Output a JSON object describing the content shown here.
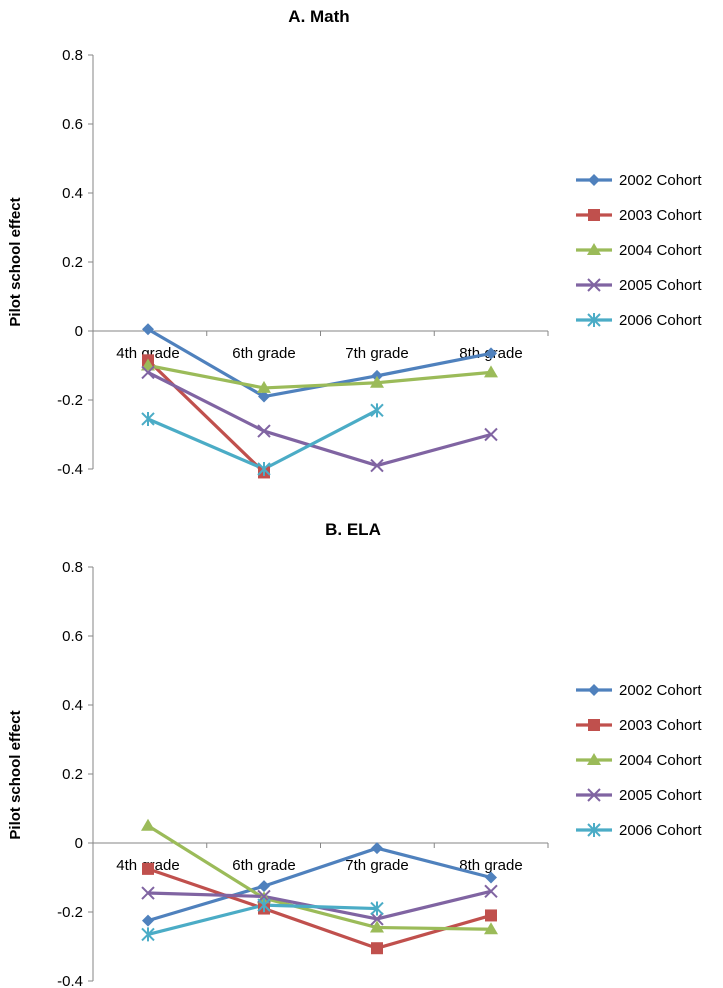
{
  "chart_data": [
    {
      "type": "line",
      "title": "A. Math",
      "ylabel": "Pilot school effect",
      "xlabel": "",
      "ylim": [
        -0.4,
        0.8
      ],
      "yticks": [
        "0.8",
        "0.6",
        "0.4",
        "0.2",
        "0",
        "-0.2",
        "-0.4"
      ],
      "categories": [
        "4th grade",
        "6th grade",
        "7th grade",
        "8th grade"
      ],
      "legend_position": "right",
      "grid": false,
      "series": [
        {
          "name": "2002 Cohort",
          "color": "#4f81bd",
          "marker": "diamond",
          "values": [
            0.005,
            -0.19,
            -0.13,
            -0.065
          ]
        },
        {
          "name": "2003 Cohort",
          "color": "#c0504d",
          "marker": "square",
          "values": [
            -0.085,
            -0.41,
            null,
            null
          ]
        },
        {
          "name": "2004 Cohort",
          "color": "#9bbb59",
          "marker": "triangle",
          "values": [
            -0.1,
            -0.165,
            -0.15,
            -0.12
          ]
        },
        {
          "name": "2005 Cohort",
          "color": "#8064a2",
          "marker": "x",
          "values": [
            -0.12,
            -0.29,
            -0.39,
            -0.3
          ]
        },
        {
          "name": "2006 Cohort",
          "color": "#4bacc6",
          "marker": "asterisk",
          "values": [
            -0.255,
            -0.4,
            -0.23,
            null
          ]
        }
      ]
    },
    {
      "type": "line",
      "title": "B. ELA",
      "ylabel": "Pilot school effect",
      "xlabel": "",
      "ylim": [
        -0.4,
        0.8
      ],
      "yticks": [
        "0.8",
        "0.6",
        "0.4",
        "0.2",
        "0",
        "-0.2",
        "-0.4"
      ],
      "categories": [
        "4th grade",
        "6th grade",
        "7th grade",
        "8th grade"
      ],
      "legend_position": "right",
      "grid": false,
      "series": [
        {
          "name": "2002 Cohort",
          "color": "#4f81bd",
          "marker": "diamond",
          "values": [
            -0.225,
            -0.125,
            -0.015,
            -0.1
          ]
        },
        {
          "name": "2003 Cohort",
          "color": "#c0504d",
          "marker": "square",
          "values": [
            -0.075,
            -0.19,
            -0.305,
            -0.21
          ]
        },
        {
          "name": "2004 Cohort",
          "color": "#9bbb59",
          "marker": "triangle",
          "values": [
            0.05,
            -0.16,
            -0.245,
            -0.25
          ]
        },
        {
          "name": "2005 Cohort",
          "color": "#8064a2",
          "marker": "x",
          "values": [
            -0.145,
            -0.155,
            -0.22,
            -0.14
          ]
        },
        {
          "name": "2006 Cohort",
          "color": "#4bacc6",
          "marker": "asterisk",
          "values": [
            -0.265,
            -0.18,
            -0.19,
            null
          ]
        }
      ]
    }
  ]
}
